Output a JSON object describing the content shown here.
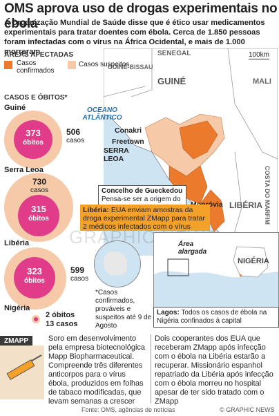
{
  "title": "OMS aprova uso de drogas experimentais no ébola",
  "intro": "A Organização Mundial de Saúde disse que é ético usar medicamentos experimentais para tratar doentes com ébola. Cerca de 1.850 pessoas foram infectadas com o vírus na África Ocidental, e mais de 1.000 morreram",
  "legend": {
    "heading": "ÁREAS AFECTADAS",
    "confirmed": "Casos confirmados",
    "suspected": "Casos suspeitos",
    "colors": {
      "confirmed": "#ec7a2c",
      "suspected": "#f6c9a8"
    }
  },
  "cases_heading": "CASOS E ÓBITOS*",
  "countries": [
    {
      "name": "Guiné",
      "cases": "506",
      "cases_label": "casos",
      "deaths": "373",
      "deaths_label": "óbitos"
    },
    {
      "name": "Serra Leoa",
      "cases": "730",
      "cases_label": "casos",
      "deaths": "315",
      "deaths_label": "óbitos"
    },
    {
      "name": "Libéria",
      "cases": "599",
      "cases_label": "casos",
      "deaths": "323",
      "deaths_label": "óbitos"
    },
    {
      "name": "Nigéria",
      "cases": "13 casos",
      "deaths": "2 óbitos"
    }
  ],
  "map": {
    "scale": "100km",
    "labels": {
      "senegal": "SENEGAL",
      "guinea_bissau": "GUINÉ-BISSAU",
      "guinea": "GUINÉ",
      "mali": "MALI",
      "ocean": "OCEANO ATLÂNTICO",
      "conakry": "Conakri",
      "freetown": "Freetown",
      "sierra_leone": "SERRA LEOA",
      "ivory_coast": "COSTA DO MARFIM",
      "monrovia": "Monróvia",
      "liberia": "LIBÉRIA"
    }
  },
  "gueckedou": {
    "title": "Concelho de Gueckedou",
    "text": "Pensa-se ser a origem do surto em Dez 2013"
  },
  "liberia_note": {
    "label": "Libéria:",
    "text": "EUA enviam amostras da droga experimental ZMapp para tratar 2 médicos infectados com o vírus"
  },
  "watermark": "GRAPHIC NEWS",
  "inset": {
    "area": "Área alargada",
    "nigeria": "NIGÉRIA"
  },
  "lagos_note": {
    "label": "Lagos:",
    "text": "Todos os casos de ébola na Nigéria confinados à capital"
  },
  "footnote": "*Casos confirmados, prováveis e suspeitos até 9 de Agosto",
  "zmapp": {
    "label": "ZMAPP",
    "left_text": "Soro em desenvolvimento pela empresa biotecnológica Mapp Biopharmaceutical. Compreende três diferentes anticorpos para o vírus ébola, produzidos em folhas de tabaco modificadas, que levam semanas a crescer",
    "right_text": "Dois cooperantes dos EUA que receberam ZMapp após infecção com o ébola na Libéria estarão a recuperar. Missionário espanhol repatriado da Libéria após infecção com o ébola morreu no hospital apesar de ter sido tratado com o ZMapp"
  },
  "source": "Fonte: OMS, agências de notícias",
  "credit": "© GRAPHIC NEWS"
}
